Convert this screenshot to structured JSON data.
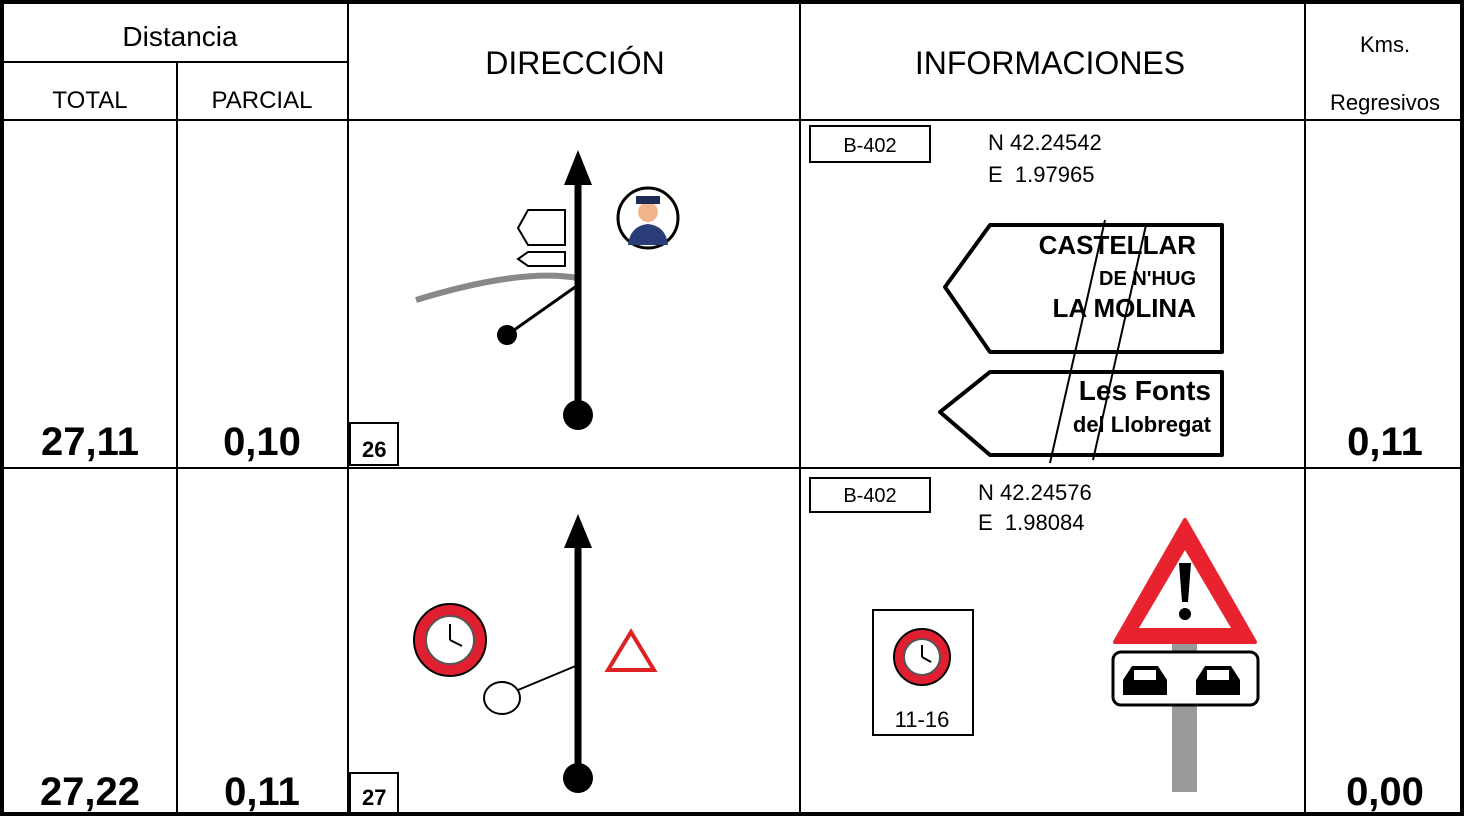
{
  "header": {
    "distancia": "Distancia",
    "total": "TOTAL",
    "parcial": "PARCIAL",
    "direccion": "DIRECCIÓN",
    "informaciones": "INFORMACIONES",
    "kms": "Kms.",
    "regresivos": "Regresivos"
  },
  "rows": [
    {
      "total": "27,11",
      "parcial": "0,10",
      "number": "26",
      "road": "B-402",
      "lat": "N 42.24542",
      "lon": "E  1.97965",
      "signs": [
        [
          "CASTELLAR",
          "DE N'HUG",
          "LA MOLINA"
        ],
        [
          "Les Fonts",
          "del Llobregat"
        ]
      ],
      "kms": "0,11"
    },
    {
      "total": "27,22",
      "parcial": "0,11",
      "number": "27",
      "road": "B-402",
      "lat": "N 42.24576",
      "lon": "E  1.98084",
      "clock_label": "11-16",
      "kms": "0,00"
    }
  ]
}
